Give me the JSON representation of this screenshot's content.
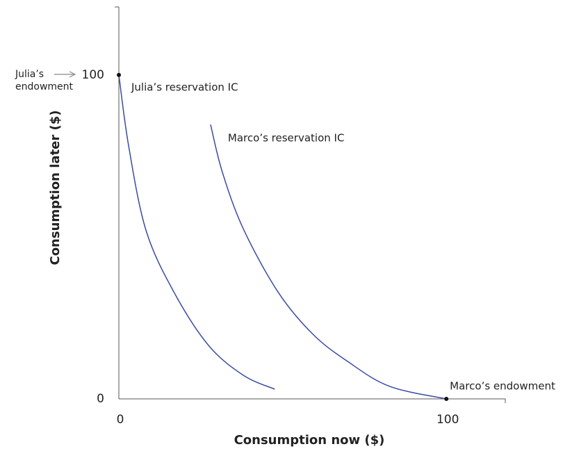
{
  "chart_data": {
    "type": "line",
    "x_label": "Consumption now ($)",
    "y_label": "Consumption later ($)",
    "xlim": [
      0,
      118
    ],
    "ylim": [
      0,
      121
    ],
    "xticks": [
      0,
      100
    ],
    "yticks": [
      0,
      100
    ],
    "series": [
      {
        "name": "Julia’s reservation IC",
        "color": "#3b4aa6",
        "x": [
          0,
          3,
          8.3,
          16.8,
          27.4,
          38,
          47.6
        ],
        "values": [
          100,
          78,
          52,
          33,
          16.5,
          7.3,
          3
        ]
      },
      {
        "name": "Marco’s reservation IC",
        "color": "#3b4aa6",
        "x": [
          28,
          31.6,
          38,
          48.6,
          59.2,
          69.8,
          82.6,
          100
        ],
        "values": [
          84.7,
          70,
          52.5,
          33,
          20,
          11.6,
          3.9,
          0
        ]
      }
    ],
    "points": [
      {
        "label": "Julia’s endowment",
        "x": 0,
        "y": 100
      },
      {
        "label": "Marco’s endowment",
        "x": 100,
        "y": 0
      }
    ]
  }
}
